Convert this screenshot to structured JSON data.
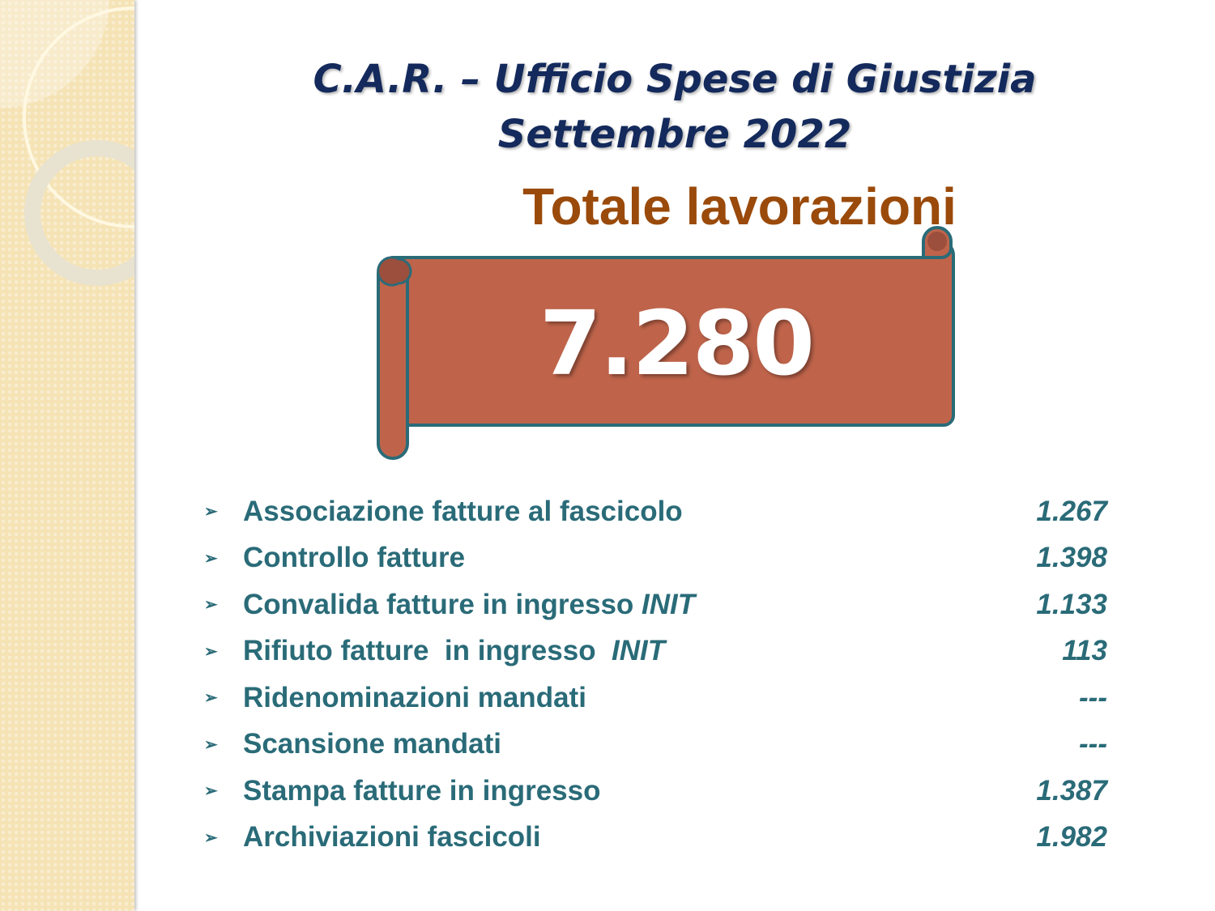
{
  "header": {
    "title": "C.A.R. – Ufficio Spese di Giustizia",
    "period": "Settembre 2022"
  },
  "summary": {
    "label": "Totale lavorazioni",
    "total": "7.280"
  },
  "colors": {
    "title": "#142a5c",
    "subtitle": "#9a4a0a",
    "banner": "#bf644b",
    "banner_border": "#2a6b78",
    "list_text": "#2a6b78"
  },
  "items": [
    {
      "label": "Associazione fatture al fascicolo",
      "suffix": "",
      "value": "1.267"
    },
    {
      "label": "Controllo fatture",
      "suffix": "",
      "value": "1.398"
    },
    {
      "label": "Convalida fatture in ingresso ",
      "suffix": "INIT",
      "value": "1.133"
    },
    {
      "label": "Rifiuto fatture  in ingresso  ",
      "suffix": "INIT",
      "value": "113"
    },
    {
      "label": "Ridenominazioni mandati",
      "suffix": "",
      "value": "---"
    },
    {
      "label": "Scansione mandati",
      "suffix": "",
      "value": "---"
    },
    {
      "label": "Stampa fatture in ingresso",
      "suffix": "",
      "value": "1.387"
    },
    {
      "label": "Archiviazioni fascicoli",
      "suffix": "",
      "value": "1.982"
    }
  ]
}
